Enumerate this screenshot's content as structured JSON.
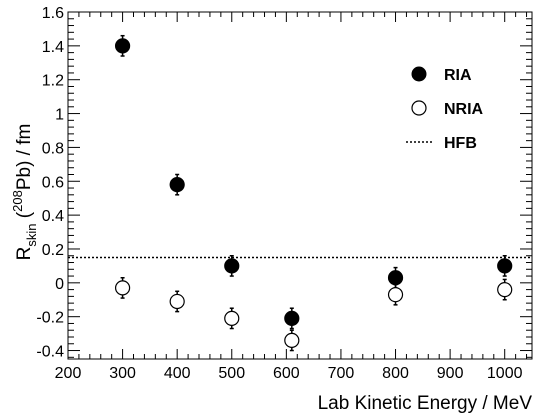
{
  "chart_data": {
    "type": "scatter",
    "xlabel": "Lab Kinetic Energy / MeV",
    "ylabel_main": "R",
    "ylabel_sub": "skin",
    "ylabel_sup": "208",
    "ylabel_rest_1": " (",
    "ylabel_rest_2": "Pb) / fm",
    "xlim": [
      200,
      1050
    ],
    "ylim": [
      -0.45,
      1.6
    ],
    "x_ticks": [
      200,
      300,
      400,
      500,
      600,
      700,
      800,
      900,
      1000
    ],
    "y_ticks": [
      -0.4,
      -0.2,
      0,
      0.2,
      0.4,
      0.6,
      0.8,
      1,
      1.2,
      1.4,
      1.6
    ],
    "x_tick_labels": [
      "200",
      "300",
      "400",
      "500",
      "600",
      "700",
      "800",
      "900",
      "1000"
    ],
    "y_tick_labels": [
      "-0.4",
      "-0.2",
      "0",
      "0.2",
      "0.4",
      "0.6",
      "0.8",
      "1",
      "1.2",
      "1.4",
      "1.6"
    ],
    "legend_position": "top-right",
    "series": [
      {
        "name": "RIA",
        "marker": "filled-circle",
        "points": [
          {
            "x": 300,
            "y": 1.4,
            "err": 0.06
          },
          {
            "x": 400,
            "y": 0.58,
            "err": 0.06
          },
          {
            "x": 500,
            "y": 0.1,
            "err": 0.06
          },
          {
            "x": 610,
            "y": -0.21,
            "err": 0.06
          },
          {
            "x": 800,
            "y": 0.03,
            "err": 0.06
          },
          {
            "x": 1000,
            "y": 0.1,
            "err": 0.06
          }
        ]
      },
      {
        "name": "NRIA",
        "marker": "open-circle",
        "points": [
          {
            "x": 300,
            "y": -0.03,
            "err": 0.06
          },
          {
            "x": 400,
            "y": -0.11,
            "err": 0.06
          },
          {
            "x": 500,
            "y": -0.21,
            "err": 0.06
          },
          {
            "x": 610,
            "y": -0.34,
            "err": 0.06
          },
          {
            "x": 800,
            "y": -0.07,
            "err": 0.06
          },
          {
            "x": 1000,
            "y": -0.04,
            "err": 0.06
          }
        ]
      },
      {
        "name": "HFB",
        "marker": "dotted-line",
        "y": 0.15
      }
    ],
    "colors": {
      "ink": "#000000",
      "background": "#ffffff"
    }
  }
}
